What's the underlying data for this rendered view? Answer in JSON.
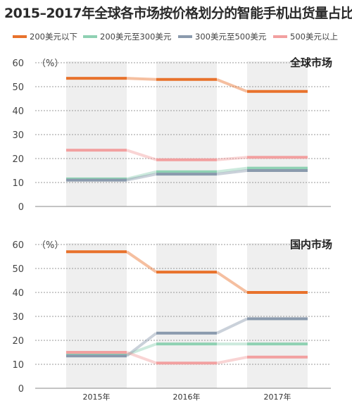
{
  "title": "2015–2017年全球各市场按价格划分的智能手机出货量占比",
  "legend": [
    {
      "label": "200美元以下",
      "color": "#e8722c"
    },
    {
      "label": "200美元至300美元",
      "color": "#8fd1b3"
    },
    {
      "label": "300美元至500美元",
      "color": "#8a9aad"
    },
    {
      "label": "500美元以上",
      "color": "#f2a0a0"
    }
  ],
  "chart_data": [
    {
      "type": "line",
      "panel_label": "全球市场",
      "unit_label": "（%）",
      "categories": [
        "2015年",
        "2016年",
        "2017年"
      ],
      "ylim": [
        0,
        60
      ],
      "yticks": [
        0,
        10,
        20,
        30,
        40,
        50,
        60
      ],
      "grid": true,
      "series": [
        {
          "name": "200美元以下",
          "values": [
            53.5,
            53,
            48
          ]
        },
        {
          "name": "200美元至300美元",
          "values": [
            11.5,
            14.5,
            16
          ]
        },
        {
          "name": "300美元至500美元",
          "values": [
            11,
            13.5,
            15
          ]
        },
        {
          "name": "500美元以上",
          "values": [
            23.5,
            19.5,
            20.5
          ]
        }
      ]
    },
    {
      "type": "line",
      "panel_label": "国内市场",
      "unit_label": "（%）",
      "categories": [
        "2015年",
        "2016年",
        "2017年"
      ],
      "ylim": [
        0,
        60
      ],
      "yticks": [
        0,
        10,
        20,
        30,
        40,
        50,
        60
      ],
      "grid": true,
      "series": [
        {
          "name": "200美元以下",
          "values": [
            57,
            48.5,
            40
          ]
        },
        {
          "name": "200美元至300美元",
          "values": [
            14,
            18.5,
            18.5
          ]
        },
        {
          "name": "300美元至500美元",
          "values": [
            13.5,
            23,
            29
          ]
        },
        {
          "name": "500美元以上",
          "values": [
            15,
            10.5,
            13
          ]
        }
      ]
    }
  ]
}
